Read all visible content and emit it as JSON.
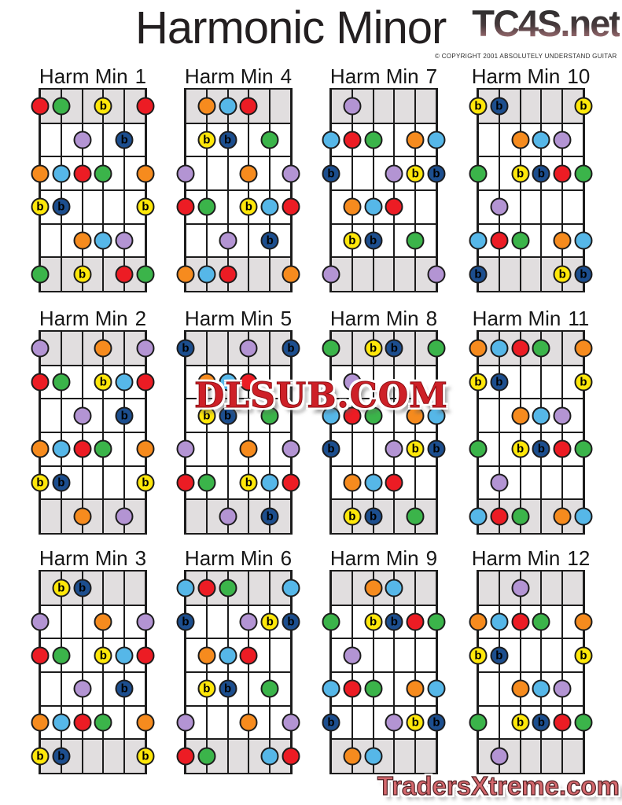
{
  "page": {
    "title": "Harmonic Minor",
    "watermark_top": "TC4S.net",
    "copyright": "© COPYRIGHT 2001 ABSOLUTELY UNDERSTAND GUITAR",
    "watermark_center": "DLSUB.COM",
    "watermark_bottom": "TradersXtreme.com"
  },
  "note_colors": {
    "red": "#EC1C24",
    "orange": "#F68B1E",
    "yellow": "#FFE70A",
    "green": "#3BB44A",
    "lightblue": "#56B7E8",
    "navy": "#1C4E8E",
    "purple": "#B394D3"
  },
  "flat_colors": [
    "yellow",
    "navy"
  ],
  "flat_label": "b",
  "diagrams": [
    {
      "title_label": "Harm Min",
      "number": "1",
      "dots": [
        [
          1,
          1,
          "red"
        ],
        [
          1,
          2,
          "green"
        ],
        [
          1,
          4,
          "yellow"
        ],
        [
          1,
          6,
          "red"
        ],
        [
          2,
          3,
          "purple"
        ],
        [
          2,
          5,
          "navy"
        ],
        [
          3,
          1,
          "orange"
        ],
        [
          3,
          2,
          "lightblue"
        ],
        [
          3,
          3,
          "red"
        ],
        [
          3,
          4,
          "green"
        ],
        [
          3,
          6,
          "orange"
        ],
        [
          4,
          1,
          "yellow"
        ],
        [
          4,
          2,
          "navy"
        ],
        [
          4,
          6,
          "yellow"
        ],
        [
          5,
          3,
          "orange"
        ],
        [
          5,
          4,
          "lightblue"
        ],
        [
          5,
          5,
          "purple"
        ],
        [
          6,
          1,
          "green"
        ],
        [
          6,
          3,
          "yellow"
        ],
        [
          6,
          5,
          "red"
        ],
        [
          6,
          6,
          "green"
        ]
      ]
    },
    {
      "title_label": "Harm Min",
      "number": "2",
      "dots": [
        [
          1,
          1,
          "purple"
        ],
        [
          1,
          4,
          "orange"
        ],
        [
          1,
          6,
          "purple"
        ],
        [
          2,
          1,
          "red"
        ],
        [
          2,
          2,
          "green"
        ],
        [
          2,
          4,
          "yellow"
        ],
        [
          2,
          5,
          "lightblue"
        ],
        [
          2,
          6,
          "red"
        ],
        [
          3,
          3,
          "purple"
        ],
        [
          3,
          5,
          "navy"
        ],
        [
          4,
          1,
          "orange"
        ],
        [
          4,
          2,
          "lightblue"
        ],
        [
          4,
          3,
          "red"
        ],
        [
          4,
          4,
          "green"
        ],
        [
          4,
          6,
          "orange"
        ],
        [
          5,
          1,
          "yellow"
        ],
        [
          5,
          2,
          "navy"
        ],
        [
          5,
          6,
          "yellow"
        ],
        [
          6,
          3,
          "orange"
        ],
        [
          6,
          5,
          "purple"
        ]
      ]
    },
    {
      "title_label": "Harm Min",
      "number": "3",
      "dots": [
        [
          1,
          2,
          "yellow"
        ],
        [
          1,
          3,
          "navy"
        ],
        [
          2,
          1,
          "purple"
        ],
        [
          2,
          4,
          "orange"
        ],
        [
          2,
          6,
          "purple"
        ],
        [
          3,
          1,
          "red"
        ],
        [
          3,
          2,
          "green"
        ],
        [
          3,
          4,
          "yellow"
        ],
        [
          3,
          5,
          "lightblue"
        ],
        [
          3,
          6,
          "red"
        ],
        [
          4,
          3,
          "purple"
        ],
        [
          4,
          5,
          "navy"
        ],
        [
          5,
          1,
          "orange"
        ],
        [
          5,
          2,
          "lightblue"
        ],
        [
          5,
          3,
          "red"
        ],
        [
          5,
          4,
          "green"
        ],
        [
          5,
          6,
          "orange"
        ],
        [
          6,
          1,
          "yellow"
        ],
        [
          6,
          2,
          "navy"
        ],
        [
          6,
          6,
          "yellow"
        ]
      ]
    },
    {
      "title_label": "Harm Min",
      "number": "4",
      "dots": [
        [
          1,
          2,
          "orange"
        ],
        [
          1,
          3,
          "lightblue"
        ],
        [
          1,
          4,
          "red"
        ],
        [
          2,
          2,
          "yellow"
        ],
        [
          2,
          3,
          "navy"
        ],
        [
          2,
          5,
          "green"
        ],
        [
          3,
          1,
          "purple"
        ],
        [
          3,
          4,
          "orange"
        ],
        [
          3,
          6,
          "purple"
        ],
        [
          4,
          1,
          "red"
        ],
        [
          4,
          2,
          "green"
        ],
        [
          4,
          4,
          "yellow"
        ],
        [
          4,
          5,
          "lightblue"
        ],
        [
          4,
          6,
          "red"
        ],
        [
          5,
          3,
          "purple"
        ],
        [
          5,
          5,
          "navy"
        ],
        [
          6,
          1,
          "orange"
        ],
        [
          6,
          2,
          "lightblue"
        ],
        [
          6,
          3,
          "red"
        ],
        [
          6,
          6,
          "orange"
        ]
      ]
    },
    {
      "title_label": "Harm Min",
      "number": "5",
      "dots": [
        [
          1,
          1,
          "navy"
        ],
        [
          1,
          4,
          "purple"
        ],
        [
          1,
          6,
          "navy"
        ],
        [
          2,
          2,
          "orange"
        ],
        [
          2,
          3,
          "lightblue"
        ],
        [
          2,
          4,
          "red"
        ],
        [
          3,
          2,
          "yellow"
        ],
        [
          3,
          3,
          "navy"
        ],
        [
          3,
          5,
          "green"
        ],
        [
          4,
          1,
          "purple"
        ],
        [
          4,
          4,
          "orange"
        ],
        [
          4,
          6,
          "purple"
        ],
        [
          5,
          1,
          "red"
        ],
        [
          5,
          2,
          "green"
        ],
        [
          5,
          4,
          "yellow"
        ],
        [
          5,
          5,
          "lightblue"
        ],
        [
          5,
          6,
          "red"
        ],
        [
          6,
          3,
          "purple"
        ],
        [
          6,
          5,
          "navy"
        ]
      ]
    },
    {
      "title_label": "Harm Min",
      "number": "6",
      "dots": [
        [
          1,
          1,
          "lightblue"
        ],
        [
          1,
          2,
          "red"
        ],
        [
          1,
          3,
          "green"
        ],
        [
          1,
          6,
          "lightblue"
        ],
        [
          2,
          1,
          "navy"
        ],
        [
          2,
          4,
          "purple"
        ],
        [
          2,
          5,
          "yellow"
        ],
        [
          2,
          6,
          "navy"
        ],
        [
          3,
          2,
          "orange"
        ],
        [
          3,
          3,
          "lightblue"
        ],
        [
          3,
          4,
          "red"
        ],
        [
          4,
          2,
          "yellow"
        ],
        [
          4,
          3,
          "navy"
        ],
        [
          4,
          5,
          "green"
        ],
        [
          5,
          1,
          "purple"
        ],
        [
          5,
          4,
          "orange"
        ],
        [
          5,
          6,
          "purple"
        ],
        [
          6,
          1,
          "red"
        ],
        [
          6,
          2,
          "green"
        ],
        [
          6,
          5,
          "lightblue"
        ],
        [
          6,
          6,
          "red"
        ]
      ]
    },
    {
      "title_label": "Harm Min",
      "number": "7",
      "dots": [
        [
          1,
          2,
          "purple"
        ],
        [
          2,
          1,
          "lightblue"
        ],
        [
          2,
          2,
          "red"
        ],
        [
          2,
          3,
          "green"
        ],
        [
          2,
          5,
          "orange"
        ],
        [
          2,
          6,
          "lightblue"
        ],
        [
          3,
          1,
          "navy"
        ],
        [
          3,
          4,
          "purple"
        ],
        [
          3,
          5,
          "yellow"
        ],
        [
          3,
          6,
          "navy"
        ],
        [
          4,
          2,
          "orange"
        ],
        [
          4,
          3,
          "lightblue"
        ],
        [
          4,
          4,
          "red"
        ],
        [
          5,
          2,
          "yellow"
        ],
        [
          5,
          3,
          "navy"
        ],
        [
          5,
          5,
          "green"
        ],
        [
          6,
          1,
          "purple"
        ],
        [
          6,
          6,
          "purple"
        ]
      ]
    },
    {
      "title_label": "Harm Min",
      "number": "8",
      "dots": [
        [
          1,
          1,
          "green"
        ],
        [
          1,
          3,
          "yellow"
        ],
        [
          1,
          4,
          "navy"
        ],
        [
          1,
          6,
          "green"
        ],
        [
          2,
          2,
          "purple"
        ],
        [
          3,
          1,
          "lightblue"
        ],
        [
          3,
          2,
          "red"
        ],
        [
          3,
          3,
          "green"
        ],
        [
          3,
          5,
          "orange"
        ],
        [
          3,
          6,
          "lightblue"
        ],
        [
          4,
          1,
          "navy"
        ],
        [
          4,
          4,
          "purple"
        ],
        [
          4,
          5,
          "yellow"
        ],
        [
          4,
          6,
          "navy"
        ],
        [
          5,
          2,
          "orange"
        ],
        [
          5,
          3,
          "lightblue"
        ],
        [
          5,
          4,
          "red"
        ],
        [
          6,
          2,
          "yellow"
        ],
        [
          6,
          3,
          "navy"
        ],
        [
          6,
          5,
          "green"
        ]
      ]
    },
    {
      "title_label": "Harm Min",
      "number": "9",
      "dots": [
        [
          1,
          3,
          "orange"
        ],
        [
          1,
          4,
          "lightblue"
        ],
        [
          2,
          1,
          "green"
        ],
        [
          2,
          3,
          "yellow"
        ],
        [
          2,
          4,
          "navy"
        ],
        [
          2,
          5,
          "red"
        ],
        [
          2,
          6,
          "green"
        ],
        [
          3,
          2,
          "purple"
        ],
        [
          4,
          1,
          "lightblue"
        ],
        [
          4,
          2,
          "red"
        ],
        [
          4,
          3,
          "green"
        ],
        [
          4,
          5,
          "orange"
        ],
        [
          4,
          6,
          "lightblue"
        ],
        [
          5,
          1,
          "navy"
        ],
        [
          5,
          4,
          "purple"
        ],
        [
          5,
          5,
          "yellow"
        ],
        [
          5,
          6,
          "navy"
        ],
        [
          6,
          2,
          "orange"
        ],
        [
          6,
          3,
          "lightblue"
        ]
      ]
    },
    {
      "title_label": "Harm Min",
      "number": "10",
      "dots": [
        [
          1,
          1,
          "yellow"
        ],
        [
          1,
          2,
          "navy"
        ],
        [
          1,
          6,
          "yellow"
        ],
        [
          2,
          3,
          "orange"
        ],
        [
          2,
          4,
          "lightblue"
        ],
        [
          2,
          5,
          "purple"
        ],
        [
          3,
          1,
          "green"
        ],
        [
          3,
          3,
          "yellow"
        ],
        [
          3,
          4,
          "navy"
        ],
        [
          3,
          5,
          "red"
        ],
        [
          3,
          6,
          "green"
        ],
        [
          4,
          2,
          "purple"
        ],
        [
          5,
          1,
          "lightblue"
        ],
        [
          5,
          2,
          "red"
        ],
        [
          5,
          3,
          "green"
        ],
        [
          5,
          5,
          "orange"
        ],
        [
          5,
          6,
          "lightblue"
        ],
        [
          6,
          1,
          "navy"
        ],
        [
          6,
          5,
          "yellow"
        ],
        [
          6,
          6,
          "navy"
        ]
      ]
    },
    {
      "title_label": "Harm Min",
      "number": "11",
      "dots": [
        [
          1,
          1,
          "orange"
        ],
        [
          1,
          2,
          "lightblue"
        ],
        [
          1,
          3,
          "red"
        ],
        [
          1,
          4,
          "green"
        ],
        [
          1,
          6,
          "orange"
        ],
        [
          2,
          1,
          "yellow"
        ],
        [
          2,
          2,
          "navy"
        ],
        [
          2,
          6,
          "yellow"
        ],
        [
          3,
          3,
          "orange"
        ],
        [
          3,
          4,
          "lightblue"
        ],
        [
          3,
          5,
          "purple"
        ],
        [
          4,
          1,
          "green"
        ],
        [
          4,
          3,
          "yellow"
        ],
        [
          4,
          4,
          "navy"
        ],
        [
          4,
          5,
          "red"
        ],
        [
          4,
          6,
          "green"
        ],
        [
          5,
          2,
          "purple"
        ],
        [
          6,
          1,
          "lightblue"
        ],
        [
          6,
          2,
          "red"
        ],
        [
          6,
          3,
          "green"
        ],
        [
          6,
          5,
          "orange"
        ],
        [
          6,
          6,
          "lightblue"
        ]
      ]
    },
    {
      "title_label": "Harm Min",
      "number": "12",
      "dots": [
        [
          1,
          3,
          "purple"
        ],
        [
          2,
          1,
          "orange"
        ],
        [
          2,
          2,
          "lightblue"
        ],
        [
          2,
          3,
          "red"
        ],
        [
          2,
          4,
          "green"
        ],
        [
          2,
          6,
          "orange"
        ],
        [
          3,
          1,
          "yellow"
        ],
        [
          3,
          2,
          "navy"
        ],
        [
          3,
          6,
          "yellow"
        ],
        [
          4,
          3,
          "orange"
        ],
        [
          4,
          4,
          "lightblue"
        ],
        [
          4,
          5,
          "purple"
        ],
        [
          5,
          1,
          "green"
        ],
        [
          5,
          3,
          "yellow"
        ],
        [
          5,
          4,
          "navy"
        ],
        [
          5,
          5,
          "red"
        ],
        [
          5,
          6,
          "green"
        ],
        [
          6,
          2,
          "purple"
        ]
      ]
    }
  ]
}
